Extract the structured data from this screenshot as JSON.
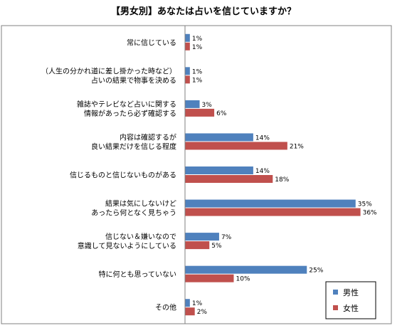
{
  "chart_data": {
    "type": "bar",
    "orientation": "horizontal",
    "title": "【男女別】あなたは占いを信じていますか？",
    "categories": [
      [
        "常に信じている"
      ],
      [
        "（人生の分かれ道に差し掛かった時など）",
        "占いの結果で物事を決める"
      ],
      [
        "雑誌やテレビなど占いに関する",
        "情報があったら必ず確認する"
      ],
      [
        "内容は確認するが",
        "良い結果だけを信じる程度"
      ],
      [
        "信じるものと信じないものがある"
      ],
      [
        "結果は気にしないけど",
        "あったら何となく見ちゃう"
      ],
      [
        "信じない＆嫌いなので",
        "意識して見ないようにしている"
      ],
      [
        "特に何とも思っていない"
      ],
      [
        "その他"
      ]
    ],
    "series": [
      {
        "name": "男性",
        "color": "#4f81bd",
        "values": [
          1,
          1,
          3,
          14,
          14,
          35,
          7,
          25,
          1
        ],
        "labels": [
          "1%",
          "1%",
          "3%",
          "14%",
          "14%",
          "35%",
          "7%",
          "25%",
          "1%"
        ]
      },
      {
        "name": "女性",
        "color": "#c0504d",
        "values": [
          1,
          1,
          6,
          21,
          18,
          36,
          5,
          10,
          2
        ],
        "labels": [
          "1%",
          "1%",
          "6%",
          "21%",
          "18%",
          "36%",
          "5%",
          "10%",
          "2%"
        ]
      }
    ],
    "xlim": [
      0,
      40
    ],
    "legend_position": "bottom-right",
    "grid": false
  }
}
